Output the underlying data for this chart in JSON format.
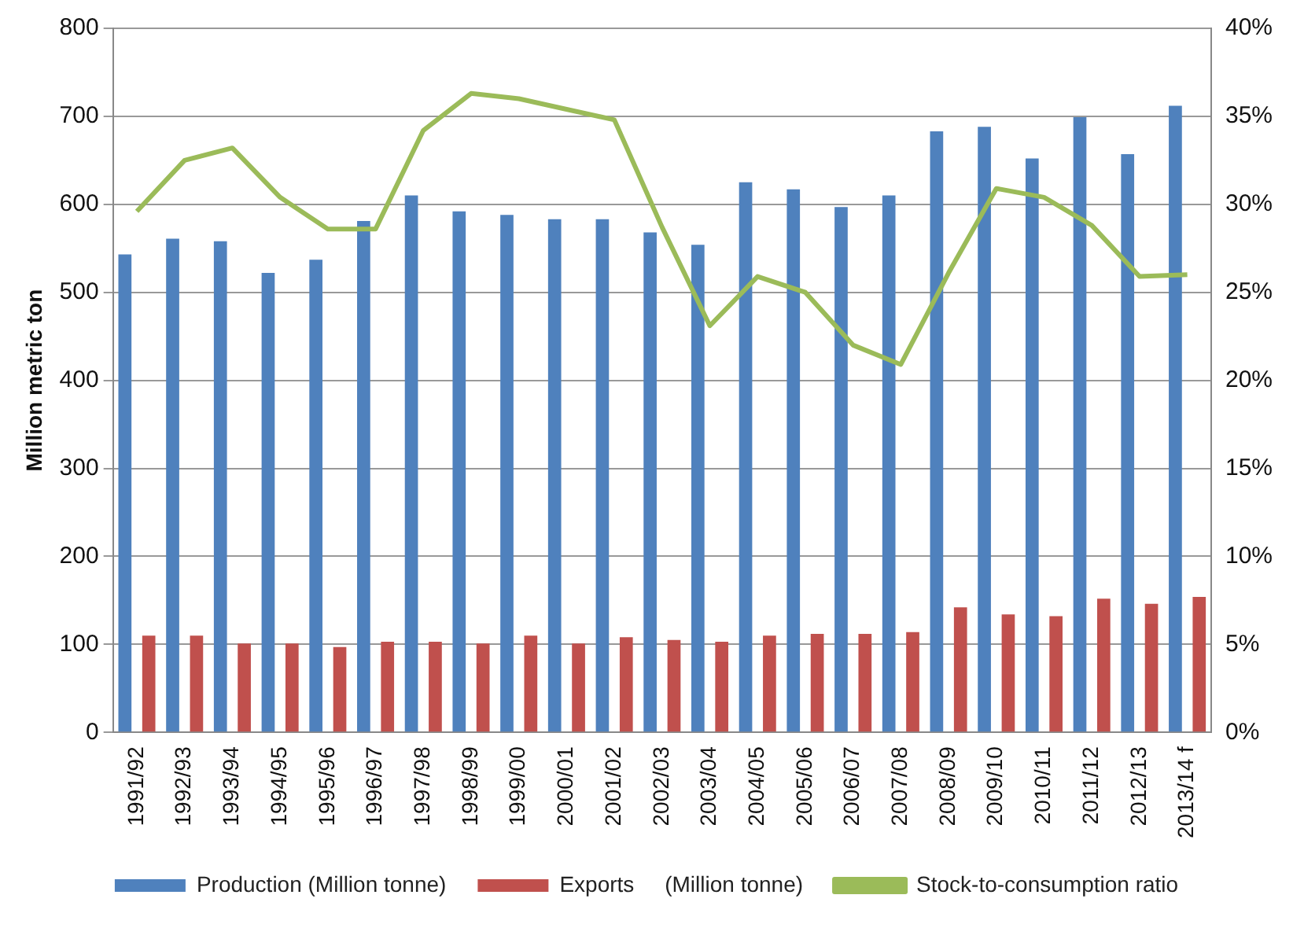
{
  "chart_data": {
    "type": "bar",
    "categories": [
      "1991/92",
      "1992/93",
      "1993/94",
      "1994/95",
      "1995/96",
      "1996/97",
      "1997/98",
      "1998/99",
      "1999/00",
      "2000/01",
      "2001/02",
      "2002/03",
      "2003/04",
      "2004/05",
      "2005/06",
      "2006/07",
      "2007/08",
      "2008/09",
      "2009/10",
      "2010/11",
      "2011/12",
      "2012/13",
      "2013/14 f"
    ],
    "series": [
      {
        "name": "Production (Million tonne)",
        "color": "#4f81bd",
        "values": [
          543,
          561,
          558,
          522,
          537,
          581,
          610,
          592,
          588,
          583,
          583,
          568,
          554,
          625,
          617,
          597,
          610,
          683,
          688,
          652,
          699,
          657,
          712
        ]
      },
      {
        "name": "Exports     (Million tonne)",
        "color": "#c0504d",
        "values": [
          110,
          110,
          101,
          101,
          97,
          103,
          103,
          101,
          110,
          101,
          108,
          105,
          103,
          110,
          112,
          112,
          114,
          142,
          134,
          132,
          152,
          146,
          154
        ]
      },
      {
        "name": "Stock-to-consumption ratio",
        "type": "line",
        "axis": "y2",
        "color": "#9bbb59",
        "values": [
          29.6,
          32.5,
          33.2,
          30.4,
          28.6,
          28.6,
          34.2,
          36.3,
          36.0,
          35.4,
          34.8,
          28.7,
          23.1,
          25.9,
          25.0,
          22.0,
          20.9,
          26.1,
          30.9,
          30.4,
          28.8,
          25.9,
          26.0
        ]
      }
    ],
    "ylabel": "Million metric ton",
    "ylim": [
      0,
      800
    ],
    "yticks": [
      0,
      100,
      200,
      300,
      400,
      500,
      600,
      700,
      800
    ],
    "y2lim": [
      0,
      40
    ],
    "y2ticks": [
      {
        "value": 0,
        "label": "0%"
      },
      {
        "value": 5,
        "label": "5%"
      },
      {
        "value": 10,
        "label": "10%"
      },
      {
        "value": 15,
        "label": "15%"
      },
      {
        "value": 20,
        "label": "20%"
      },
      {
        "value": 25,
        "label": "25%"
      },
      {
        "value": 30,
        "label": "30%"
      },
      {
        "value": 35,
        "label": "35%"
      },
      {
        "value": 40,
        "label": "40%"
      }
    ],
    "grid": "y",
    "legend": "bottom",
    "marker": "none"
  }
}
